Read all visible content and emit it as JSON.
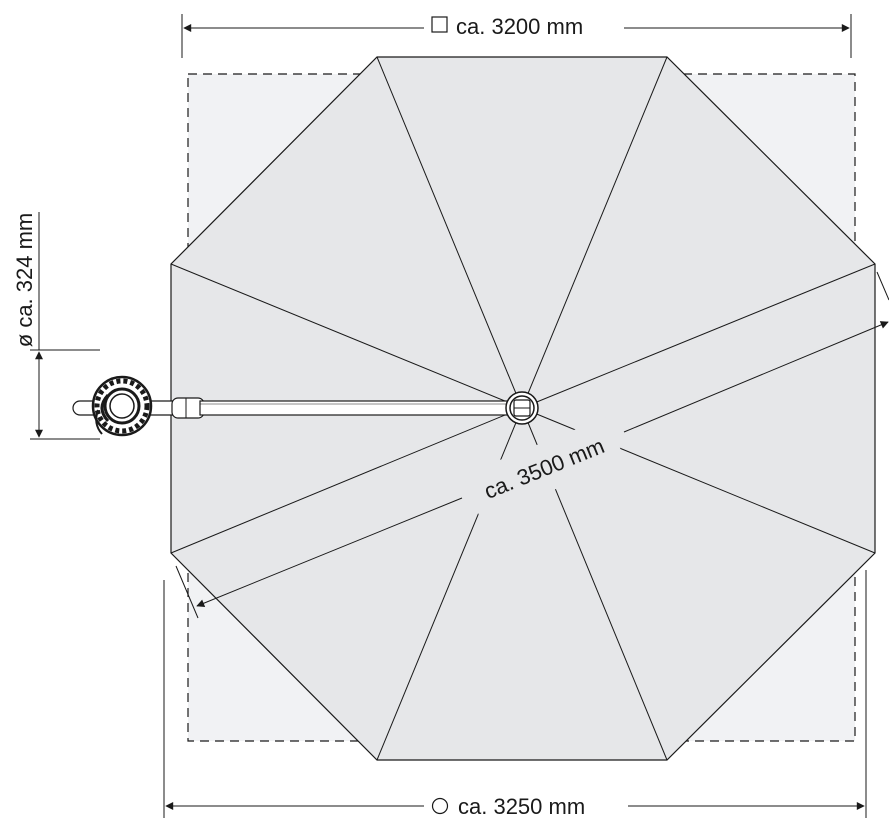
{
  "dimensions": {
    "square_width": {
      "symbol": "□",
      "label": "ca. 3200 mm"
    },
    "octagon_width": {
      "symbol": "○",
      "label": "ca. 3250 mm"
    },
    "diagonal": {
      "label": "ca. 3500 mm"
    },
    "base_diameter": {
      "label": "ø ca. 324 mm"
    }
  },
  "colors": {
    "canopy_fill": "#e6e7e9",
    "square_fill": "#f1f2f4",
    "stroke": "#1a1a1a"
  }
}
